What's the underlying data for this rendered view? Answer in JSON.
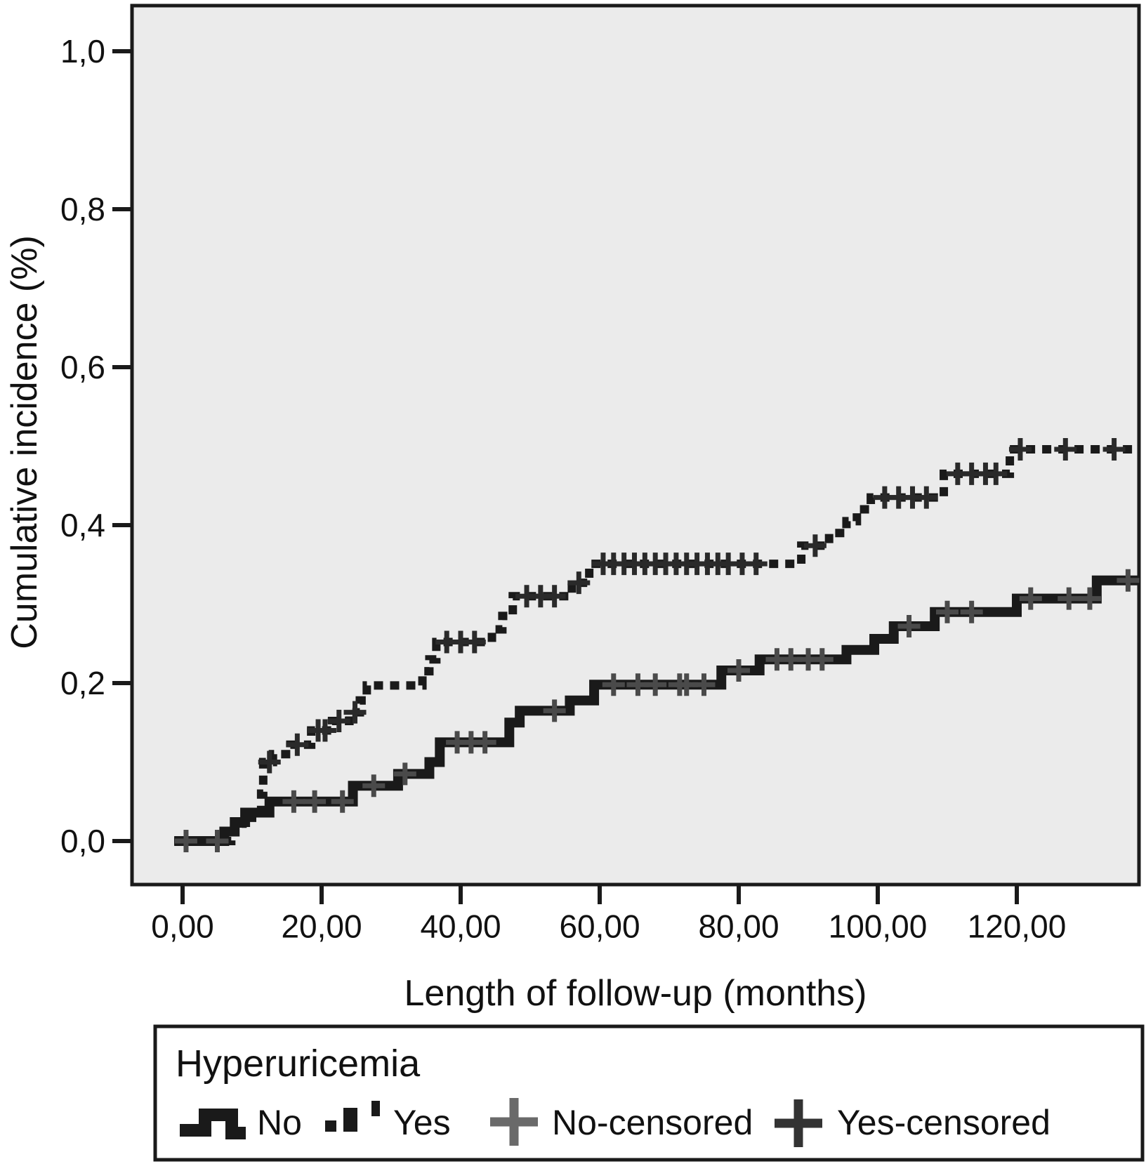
{
  "chart_data": {
    "type": "line",
    "subtype": "kaplan-meier-cumulative-incidence-steps",
    "title": "",
    "xlabel": "Length of follow-up (months)",
    "ylabel": "Cumulative incidence (%)",
    "x_ticks": [
      0,
      20,
      40,
      60,
      80,
      100,
      120
    ],
    "x_tick_labels": [
      "0,00",
      "20,00",
      "40,00",
      "60,00",
      "80,00",
      "100,00",
      "120,00"
    ],
    "y_ticks": [
      0.0,
      0.2,
      0.4,
      0.6,
      0.8,
      1.0
    ],
    "y_tick_labels": [
      "0,0",
      "0,2",
      "0,4",
      "0,6",
      "0,8",
      "1,0"
    ],
    "xlim": [
      -7.3,
      137.6
    ],
    "ylim": [
      -0.055,
      1.058
    ],
    "grid": false,
    "plot_bg_color": "#ebebeb",
    "frame_color": "#1a1a1a",
    "legend": {
      "title": "Hyperuricemia",
      "position": "bottom-box",
      "entries": [
        {
          "label": "No",
          "marker": "solid-step",
          "color": "#1a1a1a"
        },
        {
          "label": "Yes",
          "marker": "dashed-step",
          "color": "#1a1a1a"
        },
        {
          "label": "No-censored",
          "marker": "plus",
          "color": "#6a6a6a"
        },
        {
          "label": "Yes-censored",
          "marker": "plus",
          "color": "#333333"
        }
      ]
    },
    "series": [
      {
        "name": "No",
        "style": "solid",
        "color": "#1a1a1a",
        "start": [
          -1.2,
          0.0
        ],
        "end_month": 137.4,
        "steps": [
          [
            6,
            0.012
          ],
          [
            7.5,
            0.024
          ],
          [
            9,
            0.036
          ],
          [
            12.5,
            0.05
          ],
          [
            24.5,
            0.07
          ],
          [
            31,
            0.085
          ],
          [
            35.5,
            0.1
          ],
          [
            37,
            0.125
          ],
          [
            47,
            0.15
          ],
          [
            48.5,
            0.165
          ],
          [
            55.7,
            0.178
          ],
          [
            59.2,
            0.198
          ],
          [
            77.5,
            0.216
          ],
          [
            83,
            0.23
          ],
          [
            95.5,
            0.242
          ],
          [
            99.5,
            0.256
          ],
          [
            102.3,
            0.272
          ],
          [
            108.2,
            0.29
          ],
          [
            120,
            0.307
          ],
          [
            131.5,
            0.33
          ]
        ],
        "censored_at": [
          0.5,
          5,
          16,
          19,
          23,
          27.5,
          32,
          39.5,
          41.5,
          43.5,
          53.5,
          62,
          65.5,
          68,
          71.5,
          72.5,
          75,
          80,
          85.5,
          87.5,
          90,
          92,
          104.5,
          110,
          113.5,
          122,
          127.5,
          130.5,
          136
        ],
        "censor_color": "#4a4a4a"
      },
      {
        "name": "Yes",
        "style": "dashed",
        "color": "#1a1a1a",
        "start": [
          -1.2,
          0.0
        ],
        "end_month": 137.4,
        "steps": [
          [
            7,
            0.012
          ],
          [
            8.5,
            0.022
          ],
          [
            10,
            0.032
          ],
          [
            11.3,
            0.06
          ],
          [
            11.6,
            0.1
          ],
          [
            13,
            0.11
          ],
          [
            15.5,
            0.122
          ],
          [
            18.5,
            0.14
          ],
          [
            21.5,
            0.152
          ],
          [
            24,
            0.163
          ],
          [
            25.5,
            0.178
          ],
          [
            26.5,
            0.197
          ],
          [
            34.5,
            0.215
          ],
          [
            35.5,
            0.23
          ],
          [
            36.5,
            0.252
          ],
          [
            44.5,
            0.268
          ],
          [
            46,
            0.285
          ],
          [
            47.5,
            0.31
          ],
          [
            56,
            0.327
          ],
          [
            58.5,
            0.351
          ],
          [
            89,
            0.374
          ],
          [
            93,
            0.39
          ],
          [
            95.5,
            0.405
          ],
          [
            97,
            0.42
          ],
          [
            99,
            0.435
          ],
          [
            109.5,
            0.465
          ],
          [
            119,
            0.496
          ]
        ],
        "censored_at": [
          12.5,
          16.5,
          19.5,
          20.5,
          22.5,
          24.8,
          38,
          40,
          42,
          49.5,
          51.5,
          53.5,
          57,
          60.5,
          62,
          63.5,
          65,
          66.5,
          68,
          69.5,
          71,
          72.5,
          74,
          75.5,
          77,
          78.5,
          80.5,
          82.5,
          91,
          101,
          103,
          105,
          107,
          111.5,
          113.5,
          115.5,
          117,
          120.5,
          127,
          134
        ],
        "censor_color": "#2a2a2a"
      }
    ]
  }
}
